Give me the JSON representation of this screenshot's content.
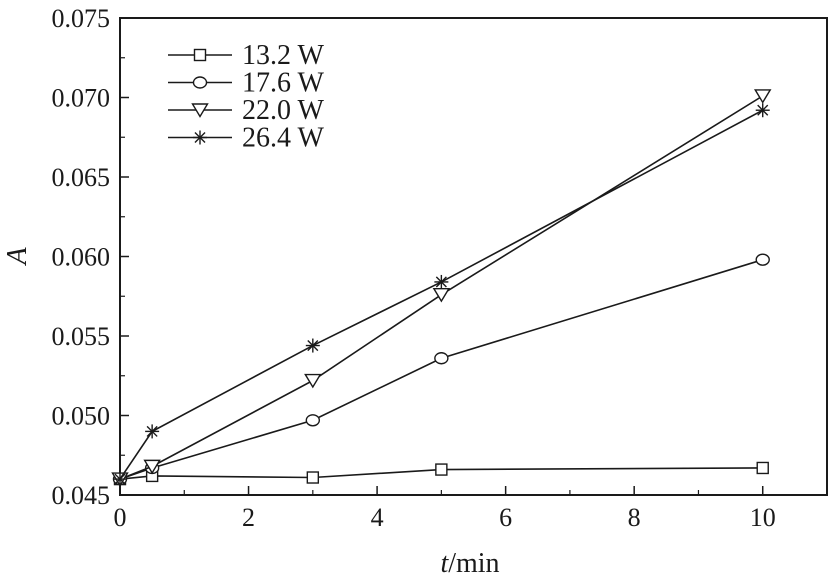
{
  "chart_data": {
    "type": "line",
    "xlabel_italic": "t",
    "xlabel_rest": "/min",
    "ylabel": "A",
    "xlim": [
      0,
      11
    ],
    "ylim": [
      0.045,
      0.075
    ],
    "xticks": [
      0,
      2,
      4,
      6,
      8,
      10
    ],
    "xtick_labels": [
      "0",
      "2",
      "4",
      "6",
      "8",
      "10"
    ],
    "yticks": [
      0.045,
      0.05,
      0.055,
      0.06,
      0.065,
      0.07,
      0.075
    ],
    "ytick_labels": [
      "0.045",
      "0.050",
      "0.055",
      "0.060",
      "0.065",
      "0.070",
      "0.075"
    ],
    "grid": false,
    "legend_position": "top-left",
    "series": [
      {
        "name": "13.2 W",
        "marker": "square",
        "x": [
          0,
          0.5,
          3,
          5,
          10
        ],
        "y": [
          0.046,
          0.0462,
          0.0461,
          0.0466,
          0.0467
        ]
      },
      {
        "name": "17.6 W",
        "marker": "circle",
        "x": [
          0,
          0.5,
          3,
          5,
          10
        ],
        "y": [
          0.046,
          0.0467,
          0.0497,
          0.0536,
          0.0598
        ]
      },
      {
        "name": "22.0 W",
        "marker": "triangle-down",
        "x": [
          0,
          0.5,
          3,
          5,
          10
        ],
        "y": [
          0.046,
          0.0468,
          0.0522,
          0.0576,
          0.0701
        ]
      },
      {
        "name": "26.4 W",
        "marker": "asterisk",
        "x": [
          0,
          0.5,
          3,
          5,
          10
        ],
        "y": [
          0.046,
          0.049,
          0.0544,
          0.0584,
          0.0692
        ]
      }
    ]
  }
}
